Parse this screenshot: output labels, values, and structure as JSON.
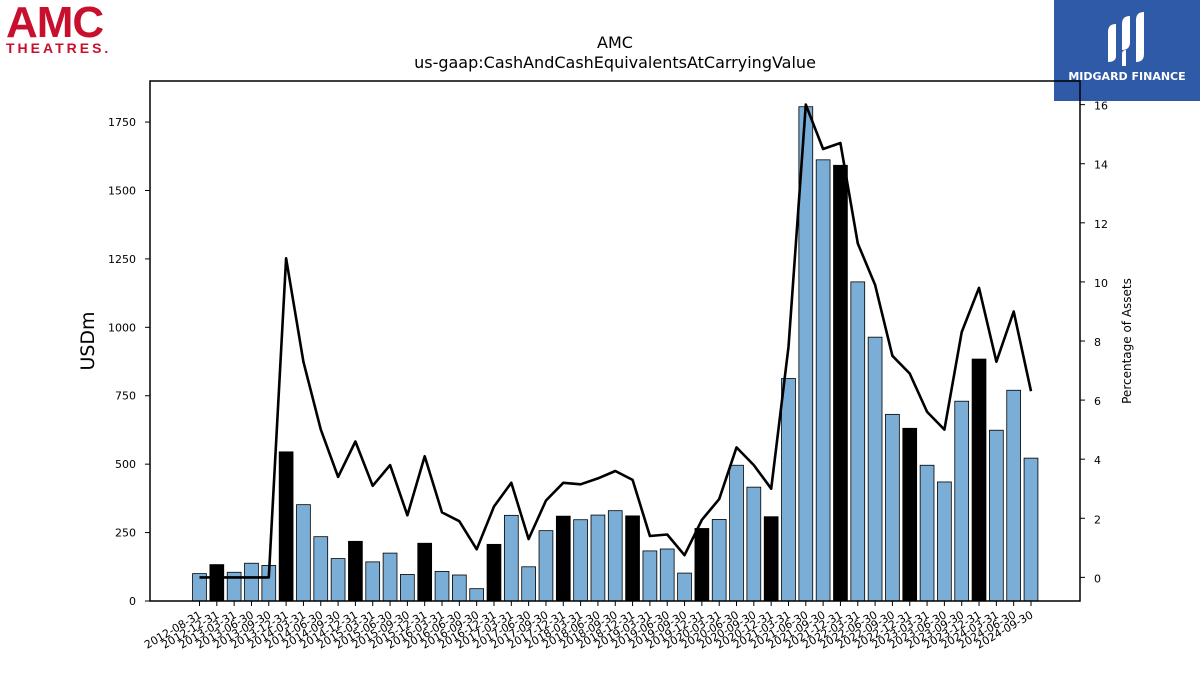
{
  "logos": {
    "amc_main": "AMC",
    "amc_sub": "THEATRES.",
    "amc_color": "#c8102e",
    "midgard_name": "MIDGARD FINANCE",
    "midgard_color": "#2e5aa8"
  },
  "chart_data": {
    "type": "bar",
    "title": "AMC",
    "subtitle": "us-gaap:CashAndCashEquivalentsAtCarryingValue",
    "ylabel": "USDm",
    "ylabel_right": "Percentage of Assets",
    "ylim": [
      0,
      1900
    ],
    "ylim_right": [
      -0.8,
      16.8
    ],
    "yticks": [
      0,
      250,
      500,
      750,
      1000,
      1250,
      1500,
      1750
    ],
    "yticks_right": [
      0,
      2,
      4,
      6,
      8,
      10,
      12,
      14,
      16
    ],
    "bar_color": "#7aaed6",
    "highlight_color": "#000000",
    "line_color": "#000000",
    "grid": false,
    "categories": [
      "2012-08-31",
      "2012-12-31",
      "2013-03-31",
      "2013-06-30",
      "2013-09-30",
      "2013-12-31",
      "2014-03-31",
      "2014-06-30",
      "2014-09-30",
      "2014-12-31",
      "2015-03-31",
      "2015-06-30",
      "2015-09-30",
      "2015-12-31",
      "2016-03-31",
      "2016-06-30",
      "2016-09-30",
      "2016-12-31",
      "2017-03-31",
      "2017-06-30",
      "2017-09-30",
      "2017-12-31",
      "2018-03-31",
      "2018-06-30",
      "2018-09-30",
      "2018-12-31",
      "2019-03-31",
      "2019-06-30",
      "2019-09-30",
      "2019-12-31",
      "2020-03-31",
      "2020-06-30",
      "2020-09-30",
      "2020-12-31",
      "2021-03-31",
      "2021-06-30",
      "2021-09-30",
      "2021-12-31",
      "2022-03-31",
      "2022-06-30",
      "2022-09-30",
      "2022-12-31",
      "2023-03-31",
      "2023-06-30",
      "2023-09-30",
      "2023-12-31",
      "2024-03-31",
      "2024-06-30",
      "2024-09-30"
    ],
    "xtick_labels": [
      "2012-08-31",
      "2012-12-31",
      "2013-03-31",
      "2013-06-30",
      "2013-09-30",
      "2013-12-31",
      "2014-03-31",
      "2014-06-30",
      "2014-09-30",
      "2014-12-31",
      "2015-03-31",
      "2015-06-30",
      "2015-09-30",
      "2015-12-31",
      "2016-03-31",
      "2016-06-30",
      "2016-09-30",
      "2016-12-31",
      "2017-03-31",
      "2017-06-30",
      "2017-09-30",
      "2017-12-31",
      "2018-03-31",
      "2018-06-30",
      "2018-09-30",
      "2018-12-31",
      "2019-03-31",
      "2019-06-30",
      "2019-09-30",
      "2019-12-31",
      "2020-03-31",
      "2020-06-30",
      "2020-09-30",
      "2020-12-31",
      "2021-03-31",
      "2021-06-30",
      "2021-09-30",
      "2021-12-31",
      "2022-03-31",
      "2022-06-30",
      "2022-09-30",
      "2022-12-31",
      "2023-03-31",
      "2023-06-30",
      "2023-09-30",
      "2023-12-31",
      "2024-03-31",
      "2024-06-30",
      "2024-09-30"
    ],
    "series": [
      {
        "values": [
          100,
          133,
          105,
          138,
          130,
          545,
          352,
          235,
          155,
          218,
          143,
          175,
          97,
          211,
          108,
          95,
          45,
          207,
          313,
          125,
          257,
          310,
          297,
          314,
          330,
          311,
          183,
          190,
          102,
          265,
          298,
          496,
          416,
          308,
          813,
          1806,
          1612,
          1592,
          1166,
          964,
          682,
          631,
          496,
          435,
          730,
          884,
          624,
          770,
          522
        ],
        "highlight": [
          false,
          true,
          false,
          false,
          false,
          true,
          false,
          false,
          false,
          true,
          false,
          false,
          false,
          true,
          false,
          false,
          false,
          true,
          false,
          false,
          false,
          true,
          false,
          false,
          false,
          true,
          false,
          false,
          false,
          true,
          false,
          false,
          false,
          true,
          false,
          false,
          false,
          true,
          false,
          false,
          false,
          true,
          false,
          false,
          false,
          true,
          false,
          false,
          false
        ]
      },
      {
        "axis": "right",
        "values": [
          0,
          0,
          0,
          0,
          0,
          10.8,
          7.3,
          5.0,
          3.4,
          4.6,
          3.1,
          3.8,
          2.1,
          4.1,
          2.2,
          1.9,
          0.95,
          2.4,
          3.2,
          1.3,
          2.6,
          3.2,
          3.15,
          3.35,
          3.6,
          3.3,
          1.4,
          1.45,
          0.75,
          1.95,
          2.65,
          4.4,
          3.8,
          3.0,
          7.8,
          16.0,
          14.5,
          14.7,
          11.3,
          9.9,
          7.5,
          6.9,
          5.6,
          5.0,
          8.3,
          9.8,
          7.3,
          9.0,
          6.3
        ]
      }
    ]
  }
}
